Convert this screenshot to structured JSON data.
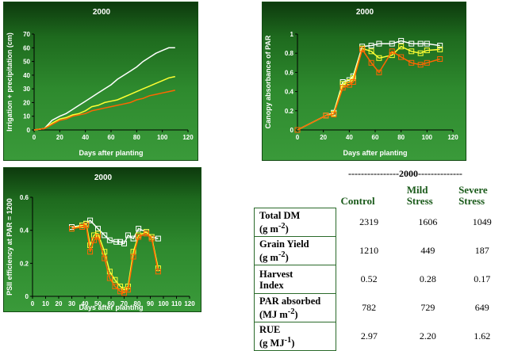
{
  "chart_data": [
    {
      "type": "line",
      "title": "2000",
      "xlabel": "Days after planting",
      "ylabel": "Irrigation + precipitation (cm)",
      "xlim": [
        0,
        120
      ],
      "ylim": [
        0,
        70
      ],
      "xticks": [
        0,
        20,
        40,
        60,
        80,
        100,
        120
      ],
      "yticks": [
        0,
        10,
        20,
        30,
        40,
        50,
        60,
        70
      ],
      "grid": false,
      "series": [
        {
          "color": "#ffffff",
          "marker": "none",
          "x": [
            0,
            8,
            14,
            20,
            25,
            30,
            35,
            40,
            45,
            50,
            55,
            60,
            65,
            70,
            75,
            80,
            85,
            90,
            95,
            100,
            105,
            110
          ],
          "y": [
            0,
            1,
            7,
            10,
            12,
            15,
            18,
            21,
            24,
            27,
            30,
            33,
            37,
            40,
            43,
            46,
            50,
            53,
            56,
            58,
            60,
            60
          ]
        },
        {
          "color": "#ffff33",
          "marker": "none",
          "x": [
            0,
            8,
            14,
            20,
            25,
            30,
            35,
            40,
            45,
            50,
            55,
            60,
            65,
            70,
            75,
            80,
            85,
            90,
            95,
            100,
            105,
            110
          ],
          "y": [
            0,
            1,
            5,
            8,
            9,
            11,
            12,
            14,
            17,
            18,
            20,
            21,
            22,
            24,
            26,
            28,
            30,
            32,
            34,
            36,
            38,
            39
          ]
        },
        {
          "color": "#ff6600",
          "marker": "none",
          "x": [
            0,
            8,
            14,
            20,
            25,
            30,
            35,
            40,
            45,
            50,
            55,
            60,
            65,
            70,
            75,
            80,
            85,
            90,
            95,
            100,
            105,
            110
          ],
          "y": [
            0,
            1,
            4,
            7,
            8,
            10,
            11,
            12,
            14,
            15,
            16,
            17,
            18,
            19,
            20,
            22,
            23,
            25,
            26,
            27,
            28,
            29
          ]
        }
      ]
    },
    {
      "type": "line",
      "title": "2000",
      "xlabel": "Days after planting",
      "ylabel": "Canopy absorbance of PAR",
      "xlim": [
        0,
        120
      ],
      "ylim": [
        0,
        1
      ],
      "xticks": [
        0,
        20,
        40,
        60,
        80,
        100,
        120
      ],
      "yticks": [
        0,
        0.2,
        0.4,
        0.6,
        0.8,
        1
      ],
      "ytick_labels": [
        "0",
        "0.2",
        "0.4",
        "0.6",
        "0.8",
        "1"
      ],
      "grid": false,
      "series": [
        {
          "color": "#ffffff",
          "marker": "square",
          "x": [
            0,
            22,
            28,
            35,
            40,
            43,
            50,
            57,
            63,
            73,
            80,
            88,
            95,
            100,
            110
          ],
          "y": [
            0,
            0.15,
            0.18,
            0.5,
            0.52,
            0.56,
            0.87,
            0.88,
            0.9,
            0.9,
            0.93,
            0.9,
            0.9,
            0.9,
            0.88
          ]
        },
        {
          "color": "#ffff33",
          "marker": "square",
          "x": [
            0,
            22,
            28,
            35,
            40,
            43,
            50,
            57,
            63,
            73,
            80,
            88,
            95,
            100,
            110
          ],
          "y": [
            0,
            0.15,
            0.17,
            0.48,
            0.5,
            0.54,
            0.85,
            0.82,
            0.75,
            0.78,
            0.87,
            0.82,
            0.8,
            0.83,
            0.84
          ]
        },
        {
          "color": "#ff6600",
          "marker": "square",
          "x": [
            0,
            22,
            28,
            35,
            40,
            43,
            50,
            57,
            63,
            73,
            80,
            88,
            95,
            100,
            110
          ],
          "y": [
            0,
            0.15,
            0.16,
            0.44,
            0.47,
            0.5,
            0.84,
            0.7,
            0.6,
            0.82,
            0.76,
            0.7,
            0.68,
            0.7,
            0.74
          ]
        }
      ]
    },
    {
      "type": "line",
      "title": "2000",
      "xlabel": "Days after planting",
      "ylabel": "PSII efficiency at PAR = 1200",
      "xlim": [
        0,
        120
      ],
      "ylim": [
        0,
        0.6
      ],
      "xticks": [
        0,
        10,
        20,
        30,
        40,
        50,
        60,
        70,
        80,
        90,
        100,
        110,
        120
      ],
      "yticks": [
        0,
        0.2,
        0.4,
        0.6
      ],
      "ytick_labels": [
        "0",
        "0.2",
        "0.4",
        "0.6"
      ],
      "grid": false,
      "series": [
        {
          "color": "#ffffff",
          "marker": "square",
          "x": [
            30,
            38,
            41,
            44,
            50,
            55,
            59,
            64,
            67,
            70,
            73,
            77,
            81,
            87,
            91,
            96
          ],
          "y": [
            0.42,
            0.43,
            0.44,
            0.46,
            0.41,
            0.37,
            0.34,
            0.33,
            0.33,
            0.32,
            0.37,
            0.35,
            0.41,
            0.39,
            0.36,
            0.35
          ]
        },
        {
          "color": "#ffff33",
          "marker": "square",
          "x": [
            30,
            38,
            41,
            44,
            47,
            50,
            55,
            59,
            63,
            67,
            70,
            73,
            77,
            81,
            87,
            91,
            96
          ],
          "y": [
            0.41,
            0.43,
            0.44,
            0.31,
            0.37,
            0.38,
            0.27,
            0.15,
            0.1,
            0.06,
            0.04,
            0.06,
            0.27,
            0.37,
            0.39,
            0.36,
            0.17
          ]
        },
        {
          "color": "#ff6600",
          "marker": "square",
          "x": [
            30,
            38,
            41,
            44,
            47,
            50,
            55,
            59,
            63,
            67,
            70,
            73,
            77,
            81,
            87,
            91,
            96
          ],
          "y": [
            0.41,
            0.42,
            0.43,
            0.27,
            0.34,
            0.36,
            0.23,
            0.11,
            0.06,
            0.03,
            0.02,
            0.04,
            0.24,
            0.36,
            0.38,
            0.35,
            0.15
          ]
        }
      ]
    },
    {
      "type": "table",
      "year_label": "----------------2000--------------",
      "columns": [
        "Control",
        "Mild Stress",
        "Severe Stress"
      ],
      "rows": [
        {
          "label": "Total DM (g m-2)",
          "values": [
            "2319",
            "1606",
            "1049"
          ]
        },
        {
          "label": "Grain Yield (g m-2)",
          "values": [
            "1210",
            "449",
            "187"
          ]
        },
        {
          "label": "Harvest Index",
          "values": [
            "0.52",
            "0.28",
            "0.17"
          ]
        },
        {
          "label": "PAR absorbed (MJ m-2)",
          "values": [
            "782",
            "729",
            "649"
          ]
        },
        {
          "label": "RUE (g MJ-1)",
          "values": [
            "2.97",
            "2.20",
            "1.62"
          ]
        }
      ]
    }
  ],
  "table_text": {
    "col_control": "Control",
    "col_mild_1": "Mild",
    "col_mild_2": "Stress",
    "col_severe_1": "Severe",
    "col_severe_2": "Stress",
    "r1_a": "Total DM",
    "r1_b": "(g m",
    "r1_sup": "-2",
    "r1_c": ")",
    "r2_a": "Grain Yield",
    "r2_b": "(g m",
    "r2_sup": "-2",
    "r2_c": ")",
    "r3_a": "Harvest",
    "r3_b": "Index",
    "r4_a": "PAR absorbed",
    "r4_b": "(MJ m",
    "r4_sup": "-2",
    "r4_c": ")",
    "r5_a": "RUE",
    "r5_b": "(g MJ",
    "r5_sup": "-1",
    "r5_c": ")"
  }
}
